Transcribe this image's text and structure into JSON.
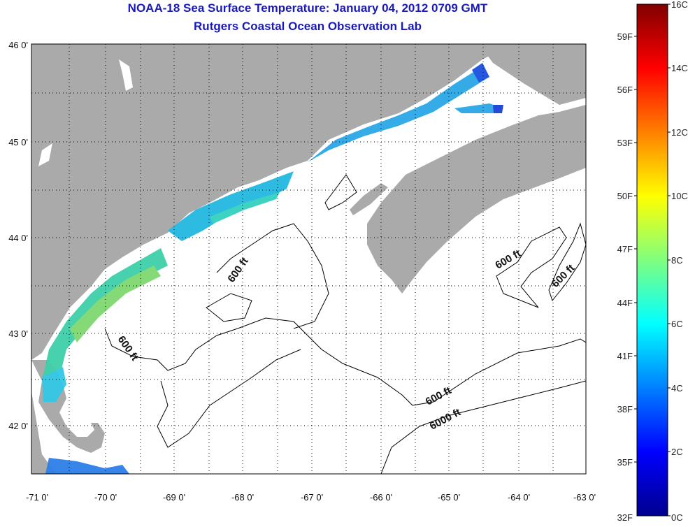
{
  "title": {
    "line1": "NOAA-18 Sea Surface Temperature:  January 04, 2012 0709 GMT",
    "line2": "Rutgers Coastal Ocean Observation Lab"
  },
  "map": {
    "lon_labels": [
      "-71 0'",
      "-70 0'",
      "-69 0'",
      "-68 0'",
      "-67 0'",
      "-66 0'",
      "-65 0'",
      "-64 0'",
      "-63 0'"
    ],
    "lat_labels": [
      "46 0'",
      "45 0'",
      "44 0'",
      "43 0'",
      "42 0'"
    ],
    "contour_labels": [
      "600 ft",
      "600 ft",
      "600 ft",
      "600 ft",
      "600 ft",
      "6000 ft"
    ],
    "colors": {
      "land": "#aaaaaa",
      "ocean_no_data": "#ffffff",
      "contour": "#000000"
    }
  },
  "colorbar": {
    "celsius_labels": [
      "16C",
      "14C",
      "12C",
      "10C",
      "8C",
      "6C",
      "4C",
      "2C",
      "0C"
    ],
    "fahrenheit_labels": [
      "59F",
      "56F",
      "53F",
      "50F",
      "47F",
      "44F",
      "41F",
      "38F",
      "35F",
      "32F"
    ],
    "colormap": "jet",
    "range_c": [
      0,
      16
    ]
  }
}
